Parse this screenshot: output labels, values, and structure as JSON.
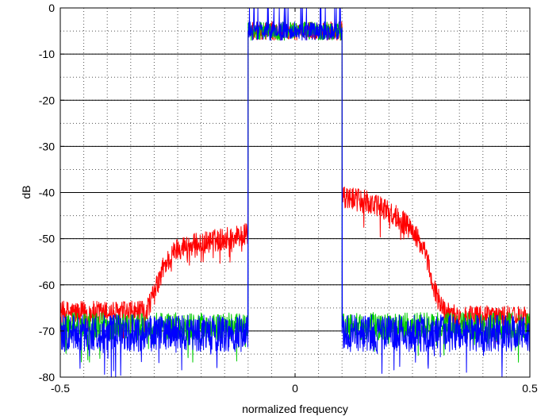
{
  "chart_data": {
    "type": "line",
    "title": "",
    "xlabel": "normalized frequency",
    "ylabel": "dB",
    "xlim": [
      -0.5,
      0.5
    ],
    "ylim": [
      -80,
      0
    ],
    "x_ticks": [
      -0.5,
      0,
      0.5
    ],
    "x_tick_labels": [
      "-0.5",
      "0",
      "0.5"
    ],
    "y_ticks": [
      0,
      -10,
      -20,
      -30,
      -40,
      -50,
      -60,
      -70,
      -80
    ],
    "y_tick_labels": [
      "0",
      "-10",
      "-20",
      "-30",
      "-40",
      "-50",
      "-60",
      "-70",
      "-80"
    ],
    "grid": true,
    "major_grid_lines": [
      -10,
      -20,
      -30,
      -40,
      -50,
      -60,
      -70
    ],
    "series": [
      {
        "color": "#ff0000",
        "noise_spread_db": 2.5,
        "points": [
          [
            -0.5,
            -66
          ],
          [
            -0.35,
            -66
          ],
          [
            -0.32,
            -66
          ],
          [
            -0.3,
            -62
          ],
          [
            -0.28,
            -56
          ],
          [
            -0.25,
            -52
          ],
          [
            -0.2,
            -51
          ],
          [
            -0.15,
            -50
          ],
          [
            -0.1,
            -49
          ],
          [
            -0.1,
            -5
          ],
          [
            0.1,
            -5
          ],
          [
            0.1,
            -41
          ],
          [
            0.15,
            -42
          ],
          [
            0.2,
            -44
          ],
          [
            0.25,
            -48
          ],
          [
            0.28,
            -54
          ],
          [
            0.3,
            -62
          ],
          [
            0.32,
            -66
          ],
          [
            0.35,
            -67
          ],
          [
            0.5,
            -67
          ]
        ]
      },
      {
        "color": "#00cc00",
        "noise_spread_db": 3,
        "points": [
          [
            -0.5,
            -69
          ],
          [
            -0.1,
            -69
          ],
          [
            -0.1,
            -5
          ],
          [
            0.1,
            -5
          ],
          [
            0.1,
            -69
          ],
          [
            0.5,
            -69
          ]
        ]
      },
      {
        "color": "#0000ff",
        "noise_spread_db": 4,
        "points": [
          [
            -0.5,
            -70.5
          ],
          [
            -0.1,
            -70.5
          ],
          [
            -0.1,
            -5
          ],
          [
            0.1,
            -5
          ],
          [
            0.1,
            -70.5
          ],
          [
            0.5,
            -70.5
          ]
        ]
      }
    ]
  }
}
